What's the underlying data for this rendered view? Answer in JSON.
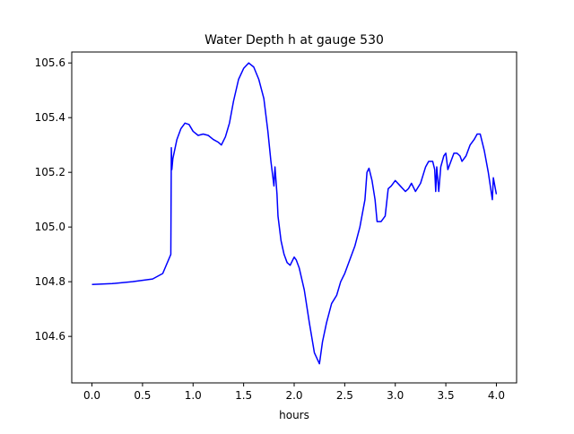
{
  "chart_data": {
    "type": "line",
    "title": "Water Depth h at gauge 530",
    "xlabel": "hours",
    "ylabel": "",
    "xlim": [
      -0.2,
      4.2
    ],
    "ylim": [
      104.43,
      105.64
    ],
    "grid": false,
    "x_ticks": [
      0.0,
      0.5,
      1.0,
      1.5,
      2.0,
      2.5,
      3.0,
      3.5,
      4.0
    ],
    "x_tick_labels": [
      "0.0",
      "0.5",
      "1.0",
      "1.5",
      "2.0",
      "2.5",
      "3.0",
      "3.5",
      "4.0"
    ],
    "y_ticks": [
      104.6,
      104.8,
      105.0,
      105.2,
      105.4,
      105.6
    ],
    "y_tick_labels": [
      "104.6",
      "104.8",
      "105.0",
      "105.2",
      "105.4",
      "105.6"
    ],
    "series": [
      {
        "name": "",
        "color": "#0000ff",
        "points": [
          [
            0.0,
            104.79
          ],
          [
            0.2,
            104.793
          ],
          [
            0.4,
            104.8
          ],
          [
            0.6,
            104.81
          ],
          [
            0.7,
            104.83
          ],
          [
            0.78,
            104.9
          ],
          [
            0.785,
            105.29
          ],
          [
            0.79,
            105.21
          ],
          [
            0.8,
            105.25
          ],
          [
            0.84,
            105.32
          ],
          [
            0.88,
            105.36
          ],
          [
            0.92,
            105.38
          ],
          [
            0.96,
            105.375
          ],
          [
            1.0,
            105.35
          ],
          [
            1.05,
            105.335
          ],
          [
            1.1,
            105.34
          ],
          [
            1.15,
            105.335
          ],
          [
            1.2,
            105.32
          ],
          [
            1.25,
            105.31
          ],
          [
            1.28,
            105.3
          ],
          [
            1.32,
            105.33
          ],
          [
            1.36,
            105.38
          ],
          [
            1.4,
            105.46
          ],
          [
            1.45,
            105.54
          ],
          [
            1.5,
            105.58
          ],
          [
            1.55,
            105.6
          ],
          [
            1.6,
            105.585
          ],
          [
            1.65,
            105.54
          ],
          [
            1.7,
            105.47
          ],
          [
            1.74,
            105.35
          ],
          [
            1.77,
            105.24
          ],
          [
            1.8,
            105.15
          ],
          [
            1.81,
            105.22
          ],
          [
            1.83,
            105.12
          ],
          [
            1.84,
            105.04
          ],
          [
            1.87,
            104.95
          ],
          [
            1.9,
            104.9
          ],
          [
            1.93,
            104.87
          ],
          [
            1.96,
            104.86
          ],
          [
            2.0,
            104.89
          ],
          [
            2.02,
            104.88
          ],
          [
            2.05,
            104.85
          ],
          [
            2.1,
            104.77
          ],
          [
            2.15,
            104.65
          ],
          [
            2.2,
            104.54
          ],
          [
            2.25,
            104.5
          ],
          [
            2.28,
            104.58
          ],
          [
            2.32,
            104.65
          ],
          [
            2.37,
            104.72
          ],
          [
            2.42,
            104.75
          ],
          [
            2.46,
            104.8
          ],
          [
            2.5,
            104.83
          ],
          [
            2.55,
            104.88
          ],
          [
            2.6,
            104.93
          ],
          [
            2.65,
            105.0
          ],
          [
            2.7,
            105.1
          ],
          [
            2.72,
            105.2
          ],
          [
            2.74,
            105.215
          ],
          [
            2.77,
            105.17
          ],
          [
            2.8,
            105.1
          ],
          [
            2.82,
            105.02
          ],
          [
            2.86,
            105.02
          ],
          [
            2.9,
            105.04
          ],
          [
            2.93,
            105.14
          ],
          [
            2.96,
            105.15
          ],
          [
            3.0,
            105.17
          ],
          [
            3.05,
            105.15
          ],
          [
            3.1,
            105.13
          ],
          [
            3.13,
            105.14
          ],
          [
            3.16,
            105.16
          ],
          [
            3.2,
            105.13
          ],
          [
            3.25,
            105.16
          ],
          [
            3.3,
            105.22
          ],
          [
            3.33,
            105.24
          ],
          [
            3.37,
            105.24
          ],
          [
            3.39,
            105.21
          ],
          [
            3.4,
            105.13
          ],
          [
            3.41,
            105.22
          ],
          [
            3.43,
            105.13
          ],
          [
            3.45,
            105.22
          ],
          [
            3.48,
            105.26
          ],
          [
            3.5,
            105.27
          ],
          [
            3.52,
            105.21
          ],
          [
            3.55,
            105.24
          ],
          [
            3.58,
            105.27
          ],
          [
            3.61,
            105.27
          ],
          [
            3.64,
            105.26
          ],
          [
            3.66,
            105.24
          ],
          [
            3.7,
            105.26
          ],
          [
            3.74,
            105.3
          ],
          [
            3.78,
            105.32
          ],
          [
            3.81,
            105.34
          ],
          [
            3.84,
            105.34
          ],
          [
            3.88,
            105.28
          ],
          [
            3.92,
            105.2
          ],
          [
            3.96,
            105.1
          ],
          [
            3.97,
            105.18
          ],
          [
            4.0,
            105.12
          ]
        ]
      }
    ]
  }
}
